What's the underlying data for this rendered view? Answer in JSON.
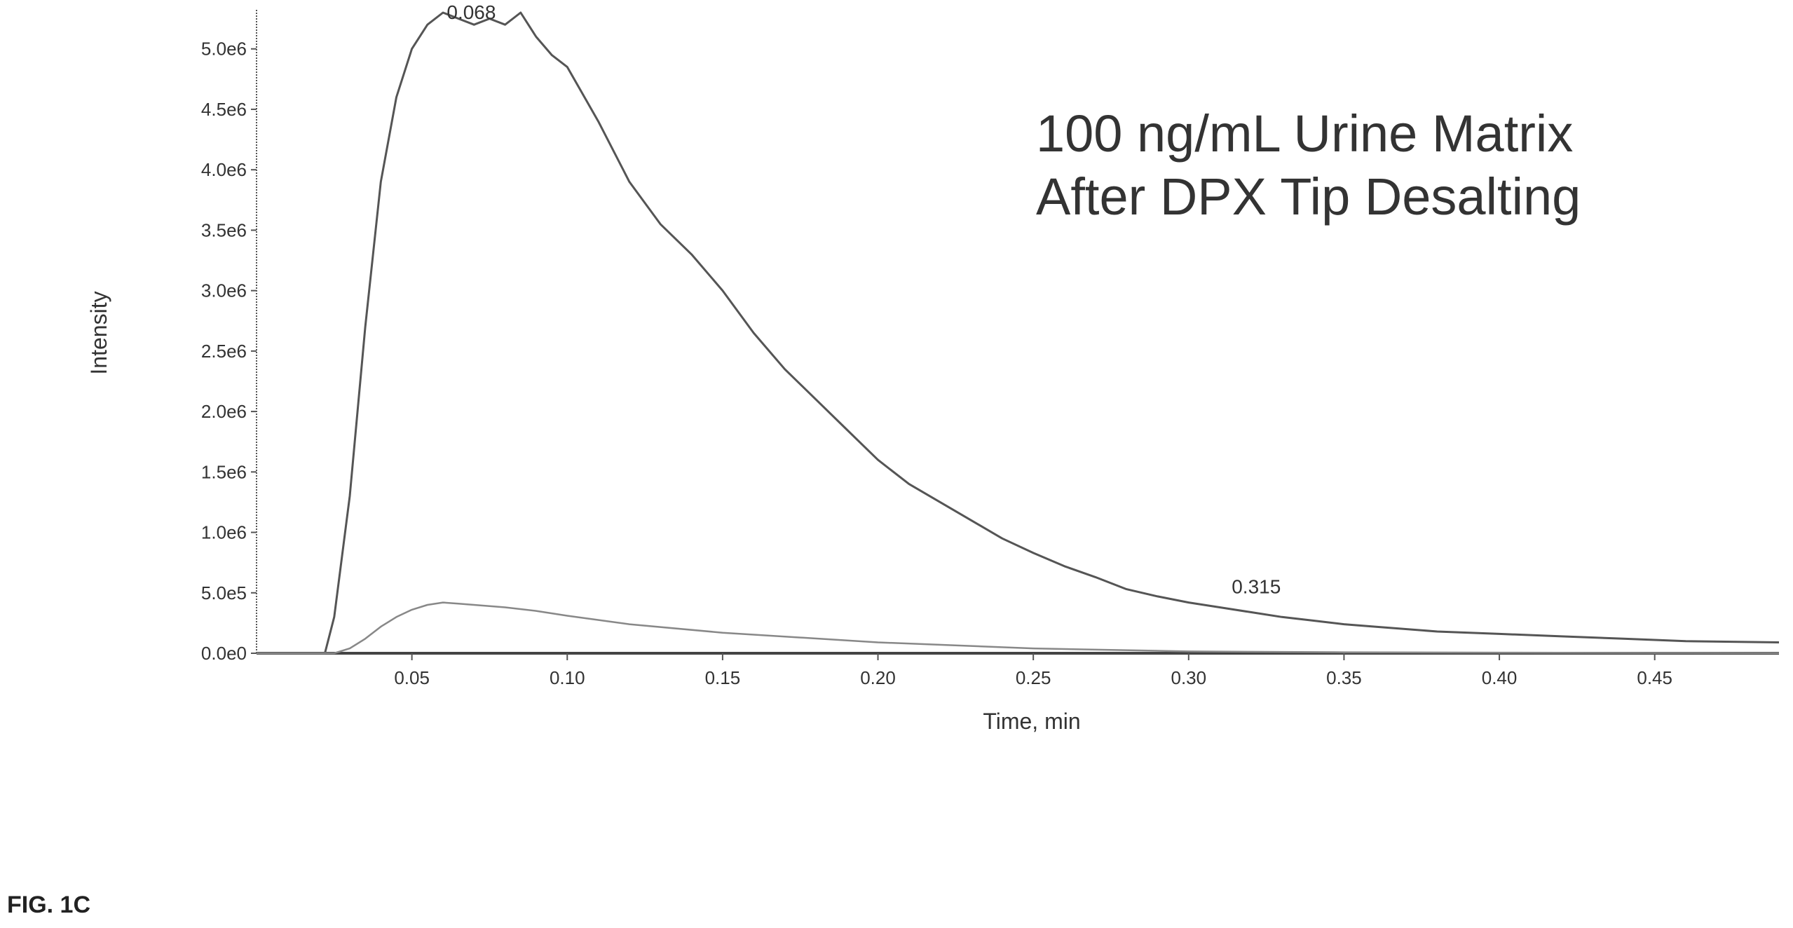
{
  "figure_label": "FIG. 1C",
  "chart_data": {
    "type": "line",
    "xlabel": "Time, min",
    "ylabel": "Intensity",
    "xlim": [
      0,
      0.49
    ],
    "ylim": [
      0,
      5300000.0
    ],
    "x_ticks": [
      0.05,
      0.1,
      0.15,
      0.2,
      0.25,
      0.3,
      0.35,
      0.4,
      0.45
    ],
    "x_tick_labels": [
      "0.05",
      "0.10",
      "0.15",
      "0.20",
      "0.25",
      "0.30",
      "0.35",
      "0.40",
      "0.45"
    ],
    "y_ticks": [
      0,
      500000,
      1000000,
      1500000,
      2000000,
      2500000,
      3000000,
      3500000,
      4000000,
      4500000,
      5000000
    ],
    "y_tick_labels": [
      "0.0e0",
      "5.0e5",
      "1.0e6",
      "1.5e6",
      "2.0e6",
      "2.5e6",
      "3.0e6",
      "3.5e6",
      "4.0e6",
      "4.5e6",
      "5.0e6"
    ],
    "annotation": [
      "100 ng/mL Urine Matrix",
      "After DPX Tip Desalting"
    ],
    "peak_labels": [
      {
        "text": "0.068",
        "x": 0.068,
        "y": 5200000
      },
      {
        "text": "0.315",
        "x": 0.315,
        "y": 380000
      }
    ],
    "series": [
      {
        "x": [
          0,
          0.022,
          0.025,
          0.03,
          0.035,
          0.04,
          0.045,
          0.05,
          0.055,
          0.06,
          0.065,
          0.07,
          0.075,
          0.08,
          0.085,
          0.09,
          0.095,
          0.1,
          0.11,
          0.12,
          0.13,
          0.14,
          0.15,
          0.16,
          0.17,
          0.18,
          0.19,
          0.2,
          0.21,
          0.22,
          0.23,
          0.24,
          0.25,
          0.26,
          0.27,
          0.28,
          0.29,
          0.3,
          0.31,
          0.32,
          0.33,
          0.34,
          0.35,
          0.36,
          0.38,
          0.4,
          0.42,
          0.44,
          0.46,
          0.49
        ],
        "y": [
          0,
          0,
          300000,
          1300000,
          2700000,
          3900000,
          4600000,
          5000000,
          5200000,
          5300000,
          5250000,
          5200000,
          5250000,
          5200000,
          5300000,
          5100000,
          4950000,
          4850000,
          4400000,
          3900000,
          3550000,
          3300000,
          3000000,
          2650000,
          2350000,
          2100000,
          1850000,
          1600000,
          1400000,
          1250000,
          1100000,
          950000,
          830000,
          720000,
          630000,
          530000,
          470000,
          420000,
          380000,
          340000,
          300000,
          270000,
          240000,
          220000,
          180000,
          160000,
          140000,
          120000,
          100000,
          90000
        ]
      },
      {
        "x": [
          0,
          0.025,
          0.03,
          0.035,
          0.04,
          0.045,
          0.05,
          0.055,
          0.06,
          0.065,
          0.07,
          0.08,
          0.09,
          0.1,
          0.12,
          0.15,
          0.2,
          0.25,
          0.3,
          0.35,
          0.4,
          0.45,
          0.49
        ],
        "y": [
          0,
          0,
          40000,
          120000,
          220000,
          300000,
          360000,
          400000,
          420000,
          410000,
          400000,
          380000,
          350000,
          310000,
          240000,
          170000,
          90000,
          40000,
          15000,
          8000,
          5000,
          3000,
          2000
        ]
      }
    ]
  }
}
